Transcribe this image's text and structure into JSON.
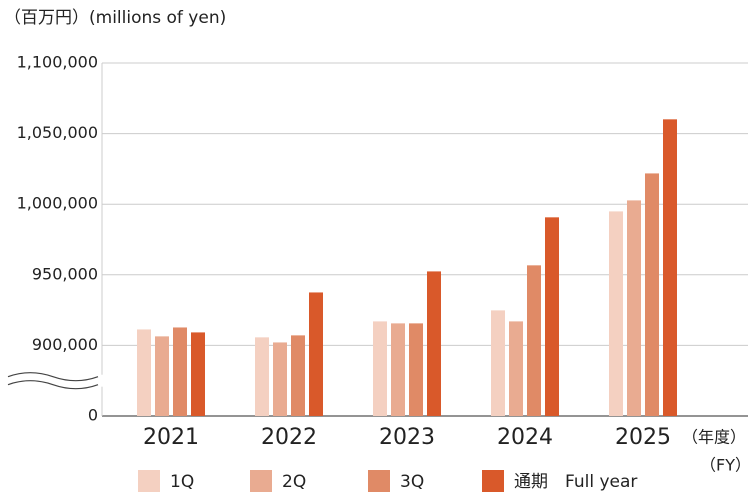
{
  "chart_data": {
    "type": "bar",
    "y_label": "（百万円）(millions of yen)",
    "x_unit": [
      "（年度）",
      "（FY）"
    ],
    "categories": [
      "2021",
      "2022",
      "2023",
      "2024",
      "2025"
    ],
    "series": [
      {
        "name": "1Q",
        "color": "#f4d0c1",
        "values": [
          911300,
          905700,
          917000,
          924800,
          994900
        ]
      },
      {
        "name": "2Q",
        "color": "#e9ab91",
        "values": [
          906400,
          902100,
          915600,
          917000,
          1002700
        ]
      },
      {
        "name": "3Q",
        "color": "#e08a66",
        "values": [
          912700,
          907100,
          915600,
          956700,
          1021800
        ]
      },
      {
        "name": "通期　Full year",
        "color": "#d9592a",
        "values": [
          909200,
          937500,
          952400,
          990700,
          1060100
        ]
      }
    ],
    "ylim": [
      0,
      1100000
    ],
    "yticks": [
      {
        "value": 0,
        "label": "0"
      },
      {
        "value": 900000,
        "label": "900,000"
      },
      {
        "value": 950000,
        "label": "950,000"
      },
      {
        "value": 1000000,
        "label": "1,000,000"
      },
      {
        "value": 1050000,
        "label": "1,050,000"
      },
      {
        "value": 1100000,
        "label": "1,100,000"
      }
    ],
    "axis_break": true,
    "grid": true
  }
}
